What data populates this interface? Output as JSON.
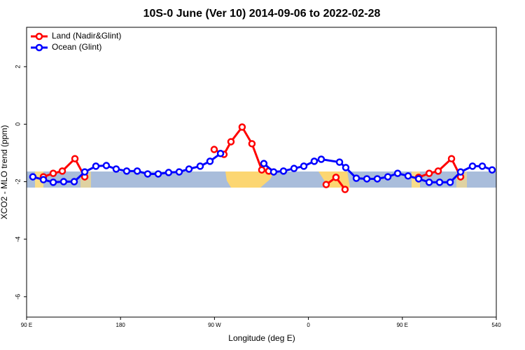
{
  "chart_data": {
    "type": "line",
    "title": "10S-0 June (Ver 10)   2014-09-06 to 2022-02-28",
    "x_label": "Longitude (deg E)",
    "y_label": "XCO2 - MLO trend (ppm)",
    "xlim": [
      90,
      540
    ],
    "ylim": [
      -6.71,
      3.37
    ],
    "xticks": [
      {
        "value": 90,
        "label": "90 E"
      },
      180,
      {
        "value": 270,
        "label": "90 W"
      },
      {
        "value": 360,
        "label": "0"
      },
      {
        "value": 450,
        "label": "90 E"
      },
      540
    ],
    "yticks": [
      -6,
      -4,
      -2,
      0,
      2
    ],
    "legend": "top-left",
    "series": [
      {
        "name": "Land (Nadir&Glint)",
        "color": "#ff0000",
        "x": [
          106.1,
          115.5,
          124.2,
          136.3,
          145.7,
          200,
          269.7,
          279.1,
          285.8,
          296.5,
          305.9,
          315.3,
          322.0,
          350,
          377.0,
          386.4,
          395.1,
          430,
          465.6,
          475.7,
          484.3,
          497.1,
          505.8
        ],
        "values": [
          -1.83,
          -1.71,
          -1.63,
          -1.2,
          -1.83,
          null,
          -0.88,
          -1.05,
          -0.61,
          -0.1,
          -0.68,
          -1.59,
          -1.63,
          null,
          -2.1,
          -1.85,
          -2.27,
          null,
          -1.85,
          -1.71,
          -1.63,
          -1.2,
          -1.83
        ]
      },
      {
        "name": "Ocean (Glint)",
        "color": "#0000ff",
        "x": [
          96.0,
          106.1,
          115.5,
          125.5,
          135.6,
          145.7,
          156.4,
          166.4,
          175.8,
          185.9,
          196.0,
          206.0,
          216.1,
          226.1,
          236.2,
          245.6,
          256.3,
          265.7,
          275.8,
          296,
          317.3,
          326.7,
          336.1,
          346.2,
          355.6,
          365.6,
          372.3,
          389.8,
          395.8,
          405.9,
          416.0,
          426.0,
          436.1,
          445.5,
          455.5,
          465.6,
          475.7,
          485.7,
          495.8,
          505.8,
          517.2,
          526.6,
          536.0
        ],
        "values": [
          -1.83,
          -1.93,
          -2.02,
          -2.0,
          -2.0,
          -1.66,
          -1.46,
          -1.44,
          -1.56,
          -1.63,
          -1.63,
          -1.73,
          -1.73,
          -1.68,
          -1.66,
          -1.56,
          -1.46,
          -1.29,
          -1.02,
          null,
          -1.37,
          -1.66,
          -1.63,
          -1.54,
          -1.46,
          -1.29,
          -1.22,
          -1.32,
          -1.51,
          -1.88,
          -1.9,
          -1.9,
          -1.83,
          -1.71,
          -1.8,
          -1.9,
          -2.02,
          -2.02,
          -2.02,
          -1.66,
          -1.46,
          -1.46,
          -1.59
        ]
      }
    ]
  }
}
